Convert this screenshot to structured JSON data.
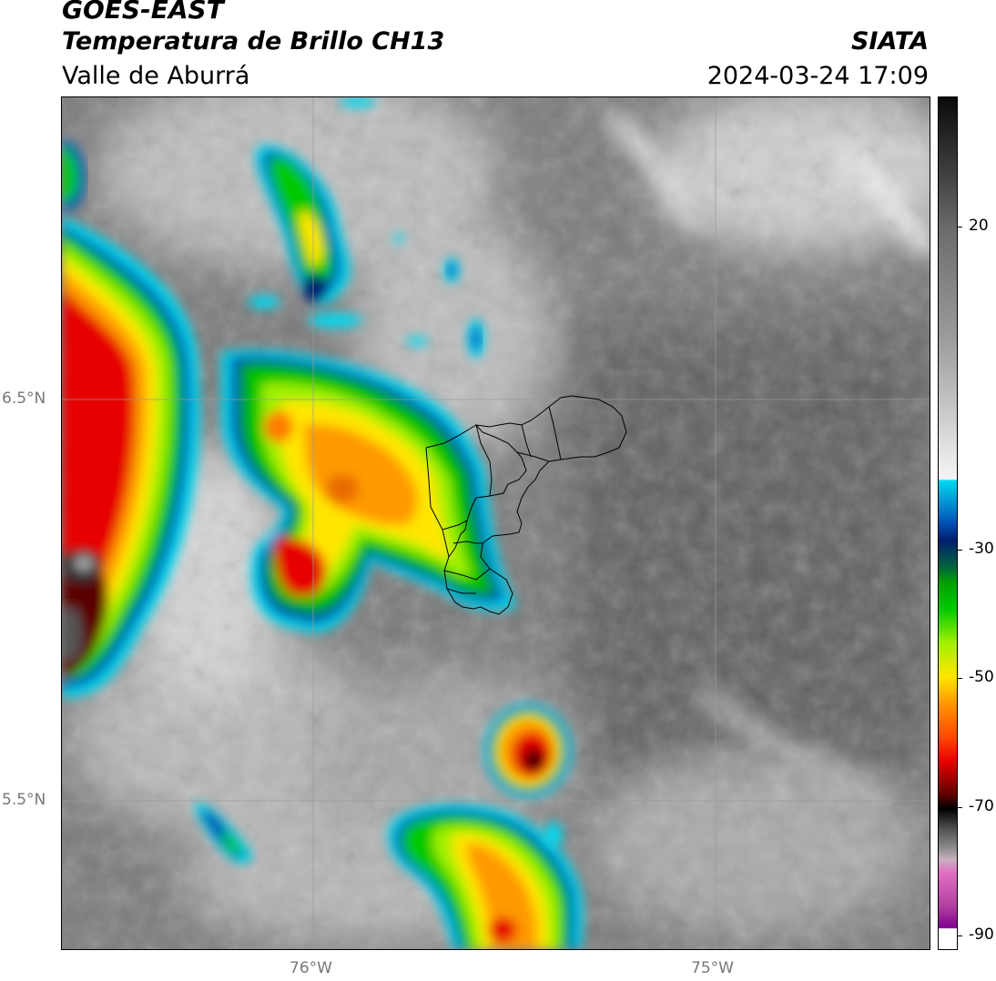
{
  "header": {
    "satellite": "GOES-EAST",
    "product": "Temperatura de Brillo CH13",
    "region": "Valle de Aburrá",
    "organization": "SIATA",
    "datetime": "2024-03-24 17:09"
  },
  "map": {
    "lat_labels": [
      "6.5°N",
      "5.5°N"
    ],
    "lon_labels": [
      "76°W",
      "75°W"
    ]
  },
  "colorbar": {
    "tick_labels": [
      "20",
      "-30",
      "-50",
      "-70",
      "-90"
    ],
    "palette": {
      "warm_gray": "#6e6e6e",
      "light_gray": "#e6e6e6",
      "cyan": "#00d8f0",
      "blue": "#0050b4",
      "navy": "#001e6e",
      "green": "#00c800",
      "lime": "#a0f000",
      "yellow": "#ffe600",
      "orange": "#ff9a00",
      "red": "#e60000",
      "dark_red": "#5a0000",
      "black": "#000000",
      "pink": "#e070c0",
      "purple": "#800090"
    }
  }
}
